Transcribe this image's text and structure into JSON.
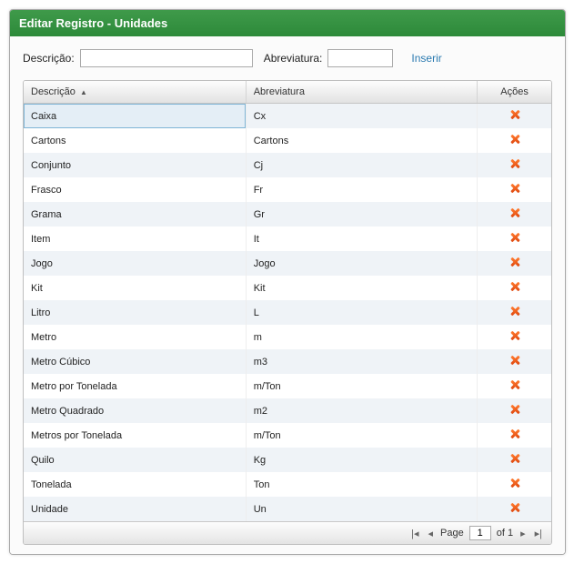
{
  "window": {
    "title": "Editar Registro - Unidades"
  },
  "form": {
    "descricao_label": "Descrição:",
    "abreviatura_label": "Abreviatura:",
    "insert_label": "Inserir",
    "descricao_value": "",
    "abreviatura_value": ""
  },
  "grid": {
    "columns": {
      "descricao": "Descrição",
      "abreviatura": "Abreviatura",
      "acoes": "Ações"
    },
    "sort_indicator": "▲",
    "rows": [
      {
        "descricao": "Caixa",
        "abreviatura": "Cx",
        "selected": true
      },
      {
        "descricao": "Cartons",
        "abreviatura": "Cartons"
      },
      {
        "descricao": "Conjunto",
        "abreviatura": "Cj"
      },
      {
        "descricao": "Frasco",
        "abreviatura": "Fr"
      },
      {
        "descricao": "Grama",
        "abreviatura": "Gr"
      },
      {
        "descricao": "Item",
        "abreviatura": "It"
      },
      {
        "descricao": "Jogo",
        "abreviatura": "Jogo"
      },
      {
        "descricao": "Kit",
        "abreviatura": "Kit"
      },
      {
        "descricao": "Litro",
        "abreviatura": "L"
      },
      {
        "descricao": "Metro",
        "abreviatura": "m"
      },
      {
        "descricao": "Metro Cúbico",
        "abreviatura": "m3"
      },
      {
        "descricao": "Metro por Tonelada",
        "abreviatura": "m/Ton"
      },
      {
        "descricao": "Metro Quadrado",
        "abreviatura": "m2"
      },
      {
        "descricao": "Metros por Tonelada",
        "abreviatura": "m/Ton"
      },
      {
        "descricao": "Quilo",
        "abreviatura": "Kg"
      },
      {
        "descricao": "Tonelada",
        "abreviatura": "Ton"
      },
      {
        "descricao": "Unidade",
        "abreviatura": "Un"
      }
    ]
  },
  "pager": {
    "page_label": "Page",
    "current_page": "1",
    "of_label": "of 1"
  }
}
